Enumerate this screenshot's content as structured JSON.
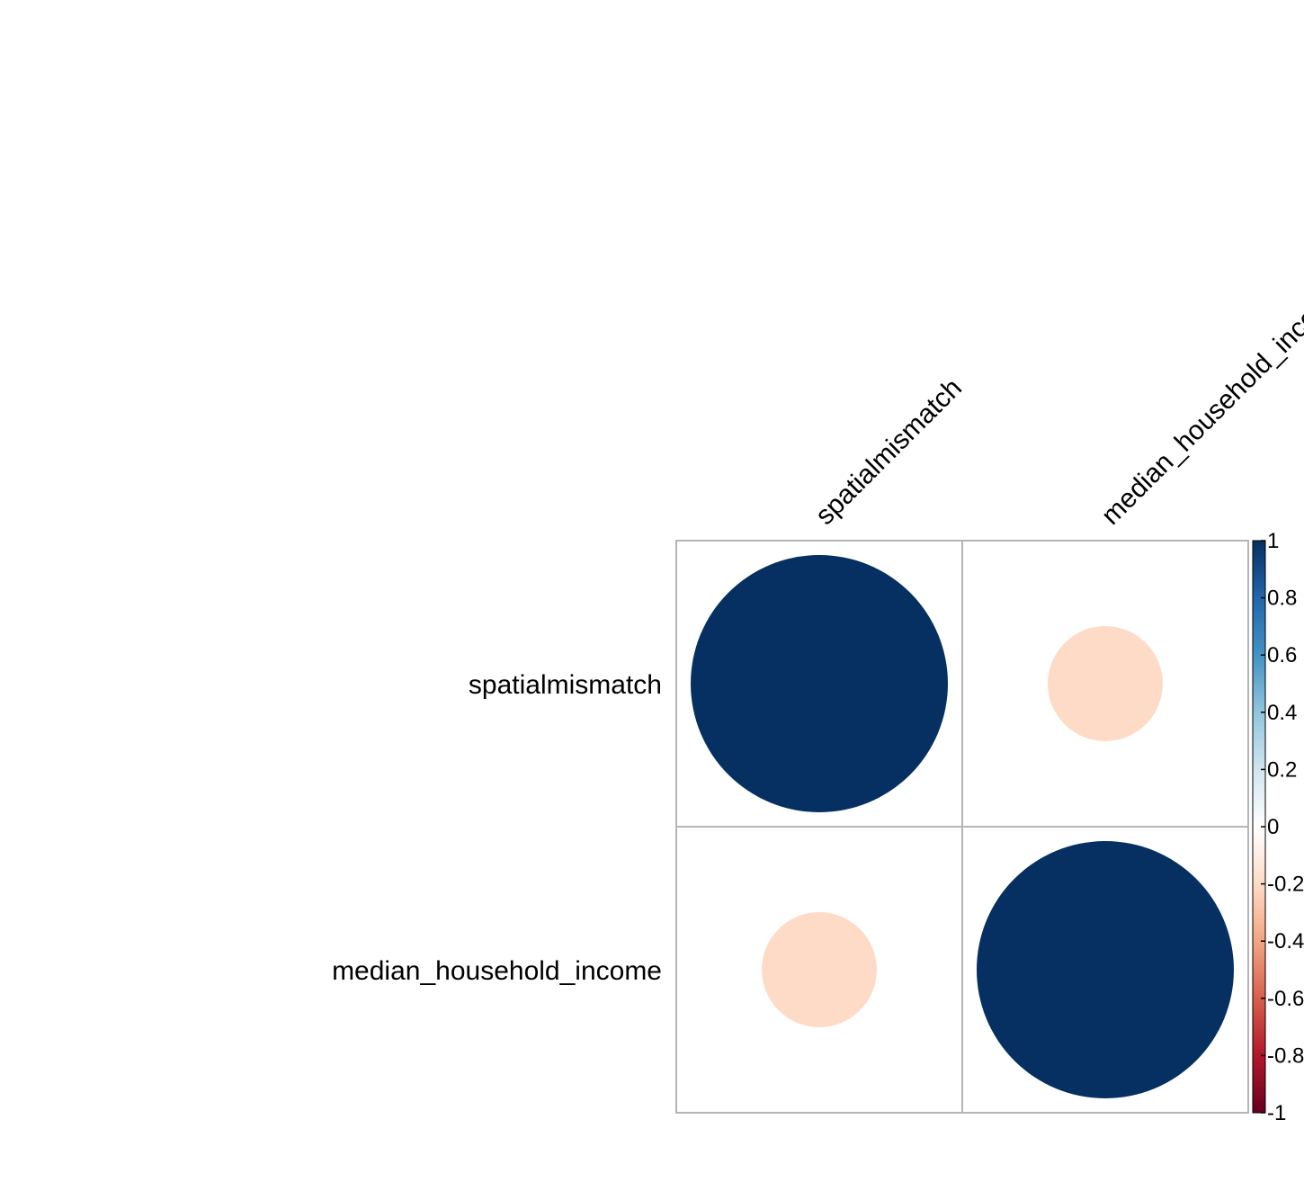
{
  "chart_data": {
    "type": "heatmap",
    "subtype": "correlation-circle-matrix",
    "title": "",
    "variables": [
      "spatialmismatch",
      "median_household_income"
    ],
    "matrix": [
      [
        1,
        -0.2
      ],
      [
        -0.2,
        1
      ]
    ],
    "colorbar": {
      "range": [
        -1,
        1
      ],
      "ticks": [
        {
          "value": 1,
          "label": "1"
        },
        {
          "value": 0.8,
          "label": "0.8"
        },
        {
          "value": 0.6,
          "label": "0.6"
        },
        {
          "value": 0.4,
          "label": "0.4"
        },
        {
          "value": 0.2,
          "label": "0.2"
        },
        {
          "value": 0,
          "label": "0"
        },
        {
          "value": -0.2,
          "label": "-0.2"
        },
        {
          "value": -0.4,
          "label": "-0.4"
        },
        {
          "value": -0.6,
          "label": "-0.6"
        },
        {
          "value": -0.8,
          "label": "-0.8"
        },
        {
          "value": -1,
          "label": "-1"
        }
      ],
      "colors": [
        "#67001F",
        "#B2182B",
        "#D6604D",
        "#F4A582",
        "#FDDBC7",
        "#FFFFFF",
        "#D1E5F0",
        "#92C5DE",
        "#4393C3",
        "#2166AC",
        "#053061"
      ]
    },
    "grid": true,
    "legend": "right"
  }
}
